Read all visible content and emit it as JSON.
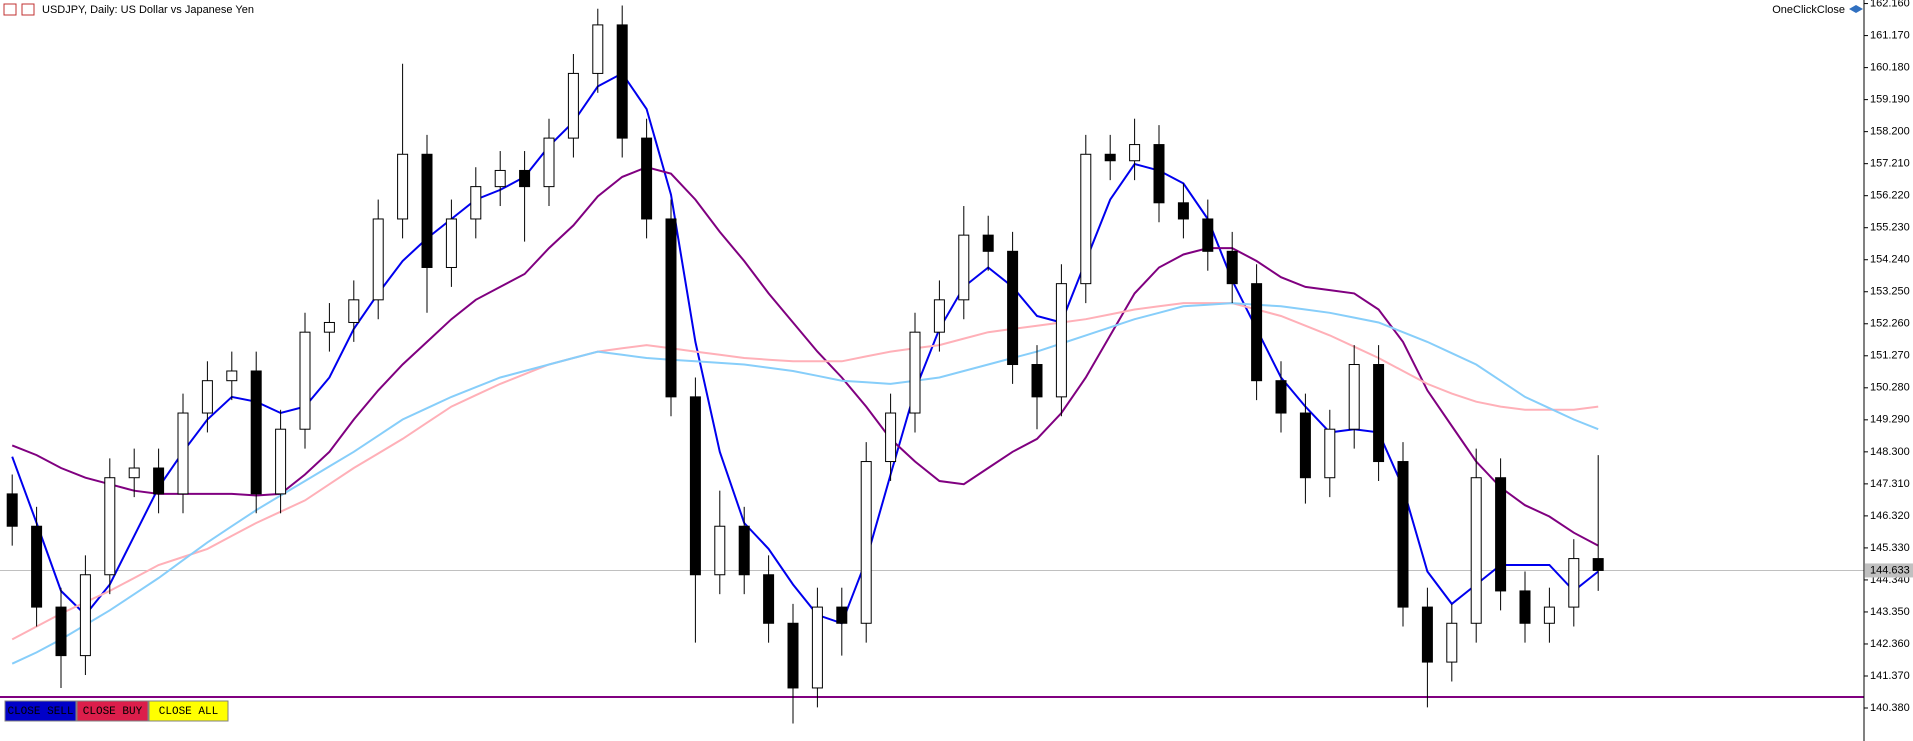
{
  "chart_data": {
    "type": "candlestick",
    "title": "USDJPY, Daily:  US Dollar vs Japanese Yen",
    "candles": {
      "open": [
        147.0,
        146.0,
        143.5,
        142.0,
        144.5,
        147.5,
        147.8,
        147.0,
        149.5,
        150.5,
        150.8,
        147.0,
        149.0,
        152.0,
        152.3,
        153.0,
        155.5,
        157.5,
        154.0,
        155.5,
        156.5,
        157.0,
        156.5,
        158.0,
        160.0,
        161.5,
        158.0,
        155.5,
        150.0,
        144.5,
        146.0,
        144.5,
        143.0,
        141.0,
        143.5,
        143.0,
        148.0,
        149.5,
        152.0,
        153.0,
        155.0,
        154.5,
        151.0,
        150.0,
        153.5,
        157.5,
        157.3,
        157.8,
        156.0,
        155.5,
        154.5,
        153.5,
        150.5,
        149.5,
        147.5,
        149.0,
        151.0,
        148.0,
        143.5,
        141.8,
        143.0,
        147.5,
        144.0,
        143.0,
        143.5,
        145.0
      ],
      "high": [
        147.6,
        146.6,
        144.1,
        145.1,
        148.1,
        148.4,
        148.4,
        150.1,
        151.1,
        151.4,
        151.4,
        149.6,
        152.6,
        152.9,
        153.6,
        156.1,
        160.3,
        158.1,
        156.1,
        157.1,
        157.6,
        157.6,
        158.6,
        160.6,
        162.0,
        162.1,
        158.6,
        156.1,
        150.6,
        147.1,
        146.6,
        145.1,
        143.6,
        144.1,
        144.1,
        148.6,
        150.1,
        152.6,
        153.6,
        155.9,
        155.6,
        155.1,
        151.6,
        154.1,
        158.1,
        158.1,
        158.6,
        158.4,
        156.6,
        156.1,
        155.1,
        154.1,
        151.1,
        150.1,
        149.6,
        151.6,
        151.6,
        148.6,
        144.1,
        143.6,
        148.4,
        148.1,
        144.6,
        144.1,
        145.6,
        148.2
      ],
      "low": [
        145.4,
        142.9,
        141.0,
        141.4,
        143.9,
        146.9,
        146.4,
        146.4,
        148.9,
        149.9,
        146.4,
        146.4,
        148.4,
        151.4,
        151.7,
        152.4,
        154.9,
        152.6,
        153.4,
        154.9,
        155.9,
        154.8,
        155.9,
        157.4,
        159.4,
        157.4,
        154.9,
        149.4,
        142.4,
        143.9,
        143.9,
        142.4,
        139.9,
        140.4,
        142.0,
        142.4,
        147.4,
        148.9,
        151.4,
        152.4,
        153.9,
        150.4,
        149.0,
        149.4,
        152.9,
        156.7,
        156.7,
        155.4,
        154.9,
        153.9,
        152.9,
        149.9,
        148.9,
        146.7,
        146.9,
        148.4,
        147.4,
        142.9,
        140.4,
        141.2,
        142.4,
        143.4,
        142.4,
        142.4,
        142.9,
        144.0
      ],
      "close": [
        146.0,
        143.5,
        142.0,
        144.5,
        147.5,
        147.8,
        147.0,
        149.5,
        150.5,
        150.8,
        147.0,
        149.0,
        152.0,
        152.3,
        153.0,
        155.5,
        157.5,
        154.0,
        155.5,
        156.5,
        157.0,
        156.5,
        158.0,
        160.0,
        161.5,
        158.0,
        155.5,
        150.0,
        144.5,
        146.0,
        144.5,
        143.0,
        141.0,
        143.5,
        143.0,
        148.0,
        149.5,
        152.0,
        153.0,
        155.0,
        154.5,
        151.0,
        150.0,
        153.5,
        157.5,
        157.3,
        157.8,
        156.0,
        155.5,
        154.5,
        153.5,
        150.5,
        149.5,
        147.5,
        149.0,
        151.0,
        148.0,
        143.5,
        141.8,
        143.0,
        147.5,
        144.0,
        143.0,
        143.5,
        145.0,
        144.633
      ]
    },
    "series": [
      {
        "color": "#0000ee",
        "values": [
          148.15,
          146.1,
          144.0,
          143.26,
          144.2,
          145.7,
          147.2,
          148.3,
          149.3,
          150.0,
          149.85,
          149.5,
          149.7,
          150.6,
          152.1,
          153.2,
          154.2,
          154.9,
          155.5,
          156.1,
          156.4,
          156.8,
          157.75,
          158.5,
          159.6,
          160.0,
          158.9,
          156.25,
          151.7,
          148.3,
          146.1,
          145.3,
          144.2,
          143.26,
          143.0,
          144.95,
          147.6,
          150.2,
          152.1,
          153.4,
          154.0,
          153.4,
          152.5,
          152.3,
          154.2,
          156.1,
          157.2,
          157.0,
          156.6,
          155.5,
          153.6,
          152.1,
          150.6,
          149.7,
          148.9,
          149.0,
          148.9,
          147.2,
          144.6,
          143.6,
          144.2,
          144.8,
          144.8,
          144.8,
          144.0,
          144.6
        ]
      },
      {
        "color": "#800080",
        "values": [
          148.5,
          148.2,
          147.8,
          147.5,
          147.3,
          147.1,
          147.0,
          147.0,
          147.0,
          147.0,
          146.95,
          147.0,
          147.6,
          148.3,
          149.3,
          150.2,
          151.0,
          151.7,
          152.4,
          153.0,
          153.4,
          153.8,
          154.6,
          155.3,
          156.2,
          156.8,
          157.1,
          156.9,
          156.1,
          155.1,
          154.2,
          153.2,
          152.3,
          151.4,
          150.6,
          149.7,
          148.7,
          148.0,
          147.4,
          147.3,
          147.8,
          148.3,
          148.7,
          149.5,
          150.6,
          151.9,
          153.2,
          154.0,
          154.4,
          154.6,
          154.6,
          154.2,
          153.7,
          153.4,
          153.3,
          153.2,
          152.7,
          151.7,
          150.2,
          149.1,
          148.0,
          147.2,
          146.65,
          146.3,
          145.8,
          145.4
        ]
      },
      {
        "color": "#ffb0b8",
        "values": [
          142.5,
          142.9,
          143.3,
          143.65,
          144.0,
          144.4,
          144.8,
          145.05,
          145.3,
          145.7,
          146.1,
          146.45,
          146.8,
          147.3,
          147.8,
          148.25,
          148.7,
          149.2,
          149.7,
          150.05,
          150.4,
          150.7,
          151.0,
          151.2,
          151.4,
          151.5,
          151.6,
          151.5,
          151.4,
          151.3,
          151.2,
          151.15,
          151.1,
          151.1,
          151.1,
          151.25,
          151.4,
          151.5,
          151.6,
          151.8,
          152.0,
          152.1,
          152.2,
          152.3,
          152.4,
          152.55,
          152.7,
          152.8,
          152.9,
          152.9,
          152.9,
          152.7,
          152.5,
          152.2,
          151.9,
          151.55,
          151.2,
          150.8,
          150.4,
          150.1,
          149.85,
          149.7,
          149.6,
          149.6,
          149.6,
          149.7
        ]
      },
      {
        "color": "#87cefa",
        "values": [
          141.75,
          142.1,
          142.5,
          142.95,
          143.4,
          143.9,
          144.4,
          144.95,
          145.5,
          146.0,
          146.5,
          146.95,
          147.4,
          147.85,
          148.3,
          148.8,
          149.3,
          149.65,
          150.0,
          150.3,
          150.6,
          150.8,
          151.0,
          151.2,
          151.4,
          151.3,
          151.2,
          151.15,
          151.1,
          151.05,
          151.0,
          150.9,
          150.8,
          150.65,
          150.5,
          150.45,
          150.4,
          150.5,
          150.6,
          150.8,
          151.0,
          151.2,
          151.4,
          151.65,
          151.9,
          152.15,
          152.4,
          152.6,
          152.8,
          152.85,
          152.9,
          152.85,
          152.8,
          152.7,
          152.6,
          152.45,
          152.3,
          152.0,
          151.7,
          151.35,
          151.0,
          150.5,
          150.0,
          149.65,
          149.3,
          149.0
        ]
      }
    ],
    "ylim": [
      139.36,
      162.27
    ],
    "yticks": [
      {
        "value": 162.16,
        "label": "162.160"
      },
      {
        "value": 161.17,
        "label": "161.170"
      },
      {
        "value": 160.18,
        "label": "160.180"
      },
      {
        "value": 159.19,
        "label": "159.190"
      },
      {
        "value": 158.2,
        "label": "158.200"
      },
      {
        "value": 157.21,
        "label": "157.210"
      },
      {
        "value": 156.22,
        "label": "156.220"
      },
      {
        "value": 155.23,
        "label": "155.230"
      },
      {
        "value": 154.24,
        "label": "154.240"
      },
      {
        "value": 153.25,
        "label": "153.250"
      },
      {
        "value": 152.26,
        "label": "152.260"
      },
      {
        "value": 151.27,
        "label": "151.270"
      },
      {
        "value": 150.28,
        "label": "150.280"
      },
      {
        "value": 149.29,
        "label": "149.290"
      },
      {
        "value": 148.3,
        "label": "148.300"
      },
      {
        "value": 147.31,
        "label": "147.310"
      },
      {
        "value": 146.32,
        "label": "146.320"
      },
      {
        "value": 145.33,
        "label": "145.330"
      },
      {
        "value": 144.34,
        "label": "144.340"
      },
      {
        "value": 143.35,
        "label": "143.350"
      },
      {
        "value": 142.36,
        "label": "142.360"
      },
      {
        "value": 141.37,
        "label": "141.370"
      },
      {
        "value": 140.38,
        "label": "140.380"
      }
    ],
    "current_price": {
      "value": 144.633,
      "label": "144.633"
    },
    "level_line": {
      "value": 140.72,
      "color": "#800080"
    },
    "up_color": "#ffffff",
    "down_color": "#000000"
  },
  "panel": {
    "brand": "OneClickClose",
    "buttons": [
      "CLOSE SELL",
      "CLOSE BUY",
      "CLOSE ALL"
    ]
  }
}
